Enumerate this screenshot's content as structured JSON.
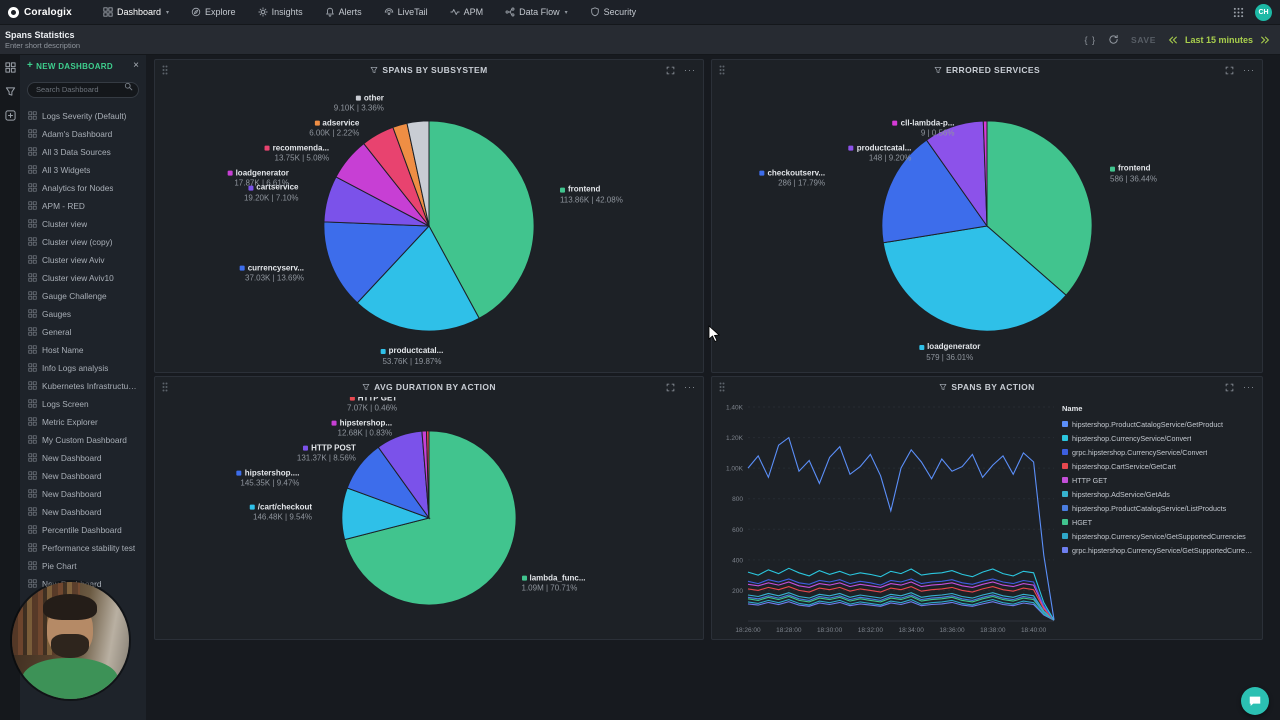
{
  "navbar": {
    "brand": "Coralogix",
    "items": [
      {
        "label": "Dashboard",
        "icon": "dashboard-icon",
        "caret": true,
        "active": true
      },
      {
        "label": "Explore",
        "icon": "explore-icon"
      },
      {
        "label": "Insights",
        "icon": "insights-icon"
      },
      {
        "label": "Alerts",
        "icon": "alerts-icon"
      },
      {
        "label": "LiveTail",
        "icon": "livetail-icon"
      },
      {
        "label": "APM",
        "icon": "apm-icon"
      },
      {
        "label": "Data Flow",
        "icon": "dataflow-icon",
        "caret": true
      },
      {
        "label": "Security",
        "icon": "security-icon"
      }
    ],
    "apps_icon": "apps-grid-icon",
    "avatar": "CH"
  },
  "header": {
    "title": "Spans Statistics",
    "subtitle": "Enter short description",
    "save_label": "SAVE",
    "time_range": "Last 15 minutes",
    "action_icons": [
      "code-braces-icon",
      "refresh-icon",
      "time-prev-icon",
      "time-next-icon"
    ]
  },
  "icons": {
    "close": "×",
    "plus": "+",
    "more": "···",
    "braces": "{ }",
    "caret": "▾"
  },
  "sidebar": {
    "new_dashboard_label": "NEW DASHBOARD",
    "search_placeholder": "Search Dashboard",
    "items": [
      "Logs Severity (Default)",
      "Adam's Dashboard",
      "All 3 Data Sources",
      "All 3 Widgets",
      "Analytics for Nodes",
      "APM - RED",
      "Cluster view",
      "Cluster view (copy)",
      "Cluster view Aviv",
      "Cluster view Aviv10",
      "Gauge Challenge",
      "Gauges",
      "General",
      "Host Name",
      "Info Logs analysis",
      "Kubernetes Infrastructure Monit...",
      "Logs Screen",
      "Metric Explorer",
      "My Custom Dashboard",
      "New Dashboard",
      "New Dashboard",
      "New Dashboard",
      "New Dashboard",
      "Percentile Dashboard",
      "Performance stability test",
      "Pie Chart",
      "New Dashboard"
    ]
  },
  "widgets": [
    {
      "title": "SPANS BY SUBSYSTEM",
      "chart_data": {
        "type": "pie",
        "slices": [
          {
            "name": "frontend",
            "value": "113.86K",
            "pct": 42.08,
            "pct_label": "42.08%",
            "color": "#41c48e"
          },
          {
            "name": "productcatal...",
            "value": "53.76K",
            "pct": 19.87,
            "pct_label": "19.87%",
            "color": "#2fc0e8"
          },
          {
            "name": "currencyserv...",
            "value": "37.03K",
            "pct": 13.69,
            "pct_label": "13.69%",
            "color": "#3d6deb"
          },
          {
            "name": "cartservice",
            "value": "19.20K",
            "pct": 7.1,
            "pct_label": "7.10%",
            "color": "#7b52ea"
          },
          {
            "name": "loadgenerator",
            "value": "17.87K",
            "pct": 6.61,
            "pct_label": "6.61%",
            "color": "#c73fd4"
          },
          {
            "name": "recommenda...",
            "value": "13.75K",
            "pct": 5.08,
            "pct_label": "5.08%",
            "color": "#e8436f"
          },
          {
            "name": "adservice",
            "value": "6.00K",
            "pct": 2.22,
            "pct_label": "2.22%",
            "color": "#ef8e44"
          },
          {
            "name": "other",
            "value": "9.10K",
            "pct": 3.36,
            "pct_label": "3.36%",
            "color": "#c9cdd4"
          }
        ]
      }
    },
    {
      "title": "ERRORED SERVICES",
      "chart_data": {
        "type": "pie",
        "slices": [
          {
            "name": "frontend",
            "value": "586",
            "pct": 36.44,
            "pct_label": "36.44%",
            "color": "#41c48e"
          },
          {
            "name": "loadgenerator",
            "value": "579",
            "pct": 36.01,
            "pct_label": "36.01%",
            "color": "#2fc0e8"
          },
          {
            "name": "checkoutserv...",
            "value": "286",
            "pct": 17.79,
            "pct_label": "17.79%",
            "color": "#3d6deb"
          },
          {
            "name": "productcatal...",
            "value": "148",
            "pct": 9.2,
            "pct_label": "9.20%",
            "color": "#8c52ea"
          },
          {
            "name": "cll-lambda-p...",
            "value": "9",
            "pct": 0.56,
            "pct_label": "0.56%",
            "color": "#d63ad6"
          }
        ]
      }
    },
    {
      "title": "AVG DURATION BY ACTION",
      "chart_data": {
        "type": "pie",
        "slices": [
          {
            "name": "lambda_func...",
            "value": "1.09M",
            "pct": 70.71,
            "pct_label": "70.71%",
            "color": "#41c48e"
          },
          {
            "name": "/cart/checkout",
            "value": "146.48K",
            "pct": 9.54,
            "pct_label": "9.54%",
            "color": "#2fc0e8"
          },
          {
            "name": "hipstershop....",
            "value": "145.35K",
            "pct": 9.47,
            "pct_label": "9.47%",
            "color": "#3d6deb"
          },
          {
            "name": "HTTP POST",
            "value": "131.37K",
            "pct": 8.56,
            "pct_label": "8.56%",
            "color": "#7b52ea"
          },
          {
            "name": "hipstershop...",
            "value": "12.68K",
            "pct": 0.83,
            "pct_label": "0.83%",
            "color": "#c73fd4"
          },
          {
            "name": "HTTP GET",
            "value": "7.07K",
            "pct": 0.46,
            "pct_label": "0.46%",
            "color": "#e8484f"
          }
        ]
      }
    },
    {
      "title": "SPANS BY ACTION",
      "chart_data": {
        "type": "line",
        "legend_header": "Name",
        "x_ticks": [
          "18:26:00",
          "18:28:00",
          "18:30:00",
          "18:32:00",
          "18:34:00",
          "18:36:00",
          "18:38:00",
          "18:40:00"
        ],
        "x_tick_idx": [
          0,
          4,
          8,
          12,
          16,
          20,
          24,
          28
        ],
        "y_ticks": [
          "200",
          "400",
          "600",
          "800",
          "1.00K",
          "1.20K",
          "1.40K"
        ],
        "y_step": 200,
        "y_max": 1400,
        "series": [
          {
            "name": "hipstershop.ProductCatalogService/GetProduct",
            "color": "#5b8ff9",
            "values": [
              1000,
              1080,
              940,
              1150,
              1200,
              980,
              1050,
              900,
              1070,
              1140,
              960,
              1010,
              1090,
              950,
              720,
              1000,
              1120,
              1040,
              930,
              1060,
              980,
              1010,
              1090,
              940,
              1020,
              1080,
              960,
              1100,
              1040,
              430,
              10
            ]
          },
          {
            "name": "hipstershop.CurrencyService/Convert",
            "color": "#2bc6de",
            "values": [
              320,
              300,
              335,
              310,
              345,
              315,
              295,
              330,
              305,
              325,
              300,
              315,
              305,
              290,
              325,
              310,
              340,
              300,
              310,
              315,
              330,
              305,
              290,
              320,
              340,
              310,
              295,
              325,
              315,
              120,
              5
            ]
          },
          {
            "name": "grpc.hipstershop.CurrencyService/Convert",
            "color": "#3d5fe0",
            "values": [
              260,
              245,
              270,
              255,
              275,
              250,
              240,
              265,
              255,
              270,
              245,
              260,
              250,
              235,
              265,
              255,
              275,
              245,
              255,
              260,
              270,
              250,
              240,
              260,
              275,
              255,
              245,
              265,
              255,
              100,
              5
            ]
          },
          {
            "name": "hipstershop.CartService/GetCart",
            "color": "#e8484f",
            "values": [
              210,
              200,
              220,
              205,
              225,
              200,
              190,
              215,
              205,
              220,
              195,
              210,
              200,
              190,
              215,
              205,
              225,
              195,
              205,
              210,
              220,
              200,
              190,
              210,
              225,
              205,
              195,
              215,
              205,
              80,
              5
            ]
          },
          {
            "name": "HTTP GET",
            "color": "#c44fd9",
            "values": [
              240,
              230,
              250,
              235,
              255,
              230,
              220,
              245,
              235,
              250,
              225,
              240,
              230,
              220,
              245,
              235,
              255,
              225,
              235,
              240,
              250,
              230,
              220,
              240,
              255,
              235,
              225,
              245,
              235,
              90,
              5
            ]
          },
          {
            "name": "hipstershop.AdService/GetAds",
            "color": "#36b3cf",
            "values": [
              170,
              160,
              180,
              165,
              185,
              160,
              150,
              175,
              165,
              180,
              155,
              170,
              160,
              150,
              175,
              165,
              185,
              155,
              165,
              170,
              180,
              160,
              150,
              170,
              185,
              165,
              155,
              175,
              165,
              65,
              5
            ]
          },
          {
            "name": "hipstershop.ProductCatalogService/ListProducts",
            "color": "#4a7de0",
            "values": [
              155,
              145,
              165,
              150,
              170,
              145,
              135,
              160,
              150,
              165,
              140,
              155,
              145,
              135,
              160,
              150,
              170,
              140,
              150,
              155,
              165,
              145,
              135,
              155,
              170,
              150,
              140,
              160,
              150,
              60,
              5
            ]
          },
          {
            "name": "HGET",
            "color": "#41c48e",
            "values": [
              145,
              135,
              155,
              140,
              160,
              135,
              125,
              150,
              140,
              155,
              130,
              145,
              135,
              125,
              150,
              140,
              160,
              130,
              140,
              145,
              155,
              135,
              125,
              145,
              160,
              140,
              130,
              150,
              140,
              55,
              5
            ]
          },
          {
            "name": "hipstershop.CurrencyService/GetSupportedCurrencies",
            "color": "#2fa8c9",
            "values": [
              125,
              115,
              135,
              120,
              140,
              115,
              105,
              130,
              120,
              135,
              110,
              125,
              115,
              105,
              130,
              120,
              140,
              110,
              120,
              125,
              135,
              115,
              105,
              125,
              140,
              120,
              110,
              130,
              120,
              45,
              5
            ]
          },
          {
            "name": "grpc.hipstershop.CurrencyService/GetSupportedCurrencies",
            "color": "#6e7ff0",
            "values": [
              112,
              104,
              122,
              108,
              126,
              104,
              96,
              118,
              108,
              122,
              100,
              112,
              104,
              96,
              118,
              108,
              126,
              100,
              108,
              112,
              122,
              104,
              96,
              112,
              126,
              108,
              100,
              118,
              108,
              40,
              5
            ]
          }
        ]
      }
    }
  ]
}
